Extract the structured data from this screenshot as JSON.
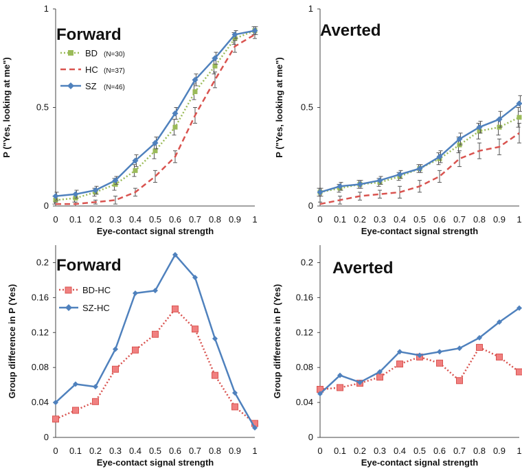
{
  "chart_data": [
    {
      "type": "line",
      "title": "Forward",
      "xlabel": "Eye-contact signal strength",
      "ylabel": "P (\"Yes, looking at me\")",
      "x": [
        0,
        0.1,
        0.2,
        0.3,
        0.4,
        0.5,
        0.6,
        0.7,
        0.8,
        0.9,
        1
      ],
      "xticks": [
        "0",
        "0.1",
        "0.2",
        "0.3",
        "0.4",
        "0.5",
        "0.6",
        "0.7",
        "0.8",
        "0.9",
        "1"
      ],
      "ylim": [
        0,
        1
      ],
      "yticks": [
        "0",
        "0.5",
        "1"
      ],
      "legend_position": "top-left",
      "series": [
        {
          "name": "BD",
          "n": "(N=30)",
          "color": "#9bbb59",
          "style": "dotted",
          "marker": "square",
          "values": [
            0.03,
            0.04,
            0.07,
            0.11,
            0.18,
            0.28,
            0.4,
            0.58,
            0.71,
            0.85,
            0.89
          ],
          "err": [
            0.02,
            0.02,
            0.02,
            0.03,
            0.03,
            0.04,
            0.04,
            0.04,
            0.04,
            0.03,
            0.02
          ]
        },
        {
          "name": "HC",
          "n": "(N=37)",
          "color": "#d9534f",
          "style": "dashed",
          "marker": "none",
          "values": [
            0.01,
            0.01,
            0.02,
            0.03,
            0.07,
            0.15,
            0.25,
            0.46,
            0.64,
            0.81,
            0.87
          ],
          "err": [
            0.01,
            0.01,
            0.01,
            0.02,
            0.02,
            0.03,
            0.03,
            0.04,
            0.04,
            0.03,
            0.02
          ]
        },
        {
          "name": "SZ",
          "n": "(N=46)",
          "color": "#4f81bd",
          "style": "solid",
          "marker": "diamond",
          "values": [
            0.05,
            0.06,
            0.08,
            0.13,
            0.23,
            0.32,
            0.47,
            0.64,
            0.75,
            0.87,
            0.89
          ],
          "err": [
            0.02,
            0.02,
            0.02,
            0.02,
            0.03,
            0.03,
            0.03,
            0.03,
            0.03,
            0.02,
            0.02
          ]
        }
      ]
    },
    {
      "type": "line",
      "title": "Averted",
      "xlabel": "Eye-contact signal strength",
      "ylabel": "P (\"Yes, looking at me\")",
      "x": [
        0,
        0.1,
        0.2,
        0.3,
        0.4,
        0.5,
        0.6,
        0.7,
        0.8,
        0.9,
        1
      ],
      "xticks": [
        "0",
        "0.1",
        "0.2",
        "0.3",
        "0.4",
        "0.5",
        "0.6",
        "0.7",
        "0.8",
        "0.9",
        "1"
      ],
      "ylim": [
        0,
        1
      ],
      "yticks": [
        "0",
        "0.5",
        "1"
      ],
      "series": [
        {
          "name": "BD",
          "color": "#9bbb59",
          "style": "dotted",
          "marker": "square",
          "values": [
            0.07,
            0.09,
            0.11,
            0.12,
            0.15,
            0.19,
            0.24,
            0.31,
            0.38,
            0.4,
            0.45
          ],
          "err": [
            0.02,
            0.02,
            0.02,
            0.02,
            0.02,
            0.02,
            0.03,
            0.04,
            0.04,
            0.04,
            0.05
          ]
        },
        {
          "name": "HC",
          "color": "#d9534f",
          "style": "dashed",
          "marker": "none",
          "values": [
            0.01,
            0.03,
            0.05,
            0.06,
            0.07,
            0.1,
            0.15,
            0.24,
            0.28,
            0.3,
            0.37
          ],
          "err": [
            0.01,
            0.02,
            0.02,
            0.02,
            0.03,
            0.03,
            0.03,
            0.04,
            0.04,
            0.04,
            0.05
          ]
        },
        {
          "name": "SZ",
          "color": "#4f81bd",
          "style": "solid",
          "marker": "diamond",
          "values": [
            0.07,
            0.1,
            0.11,
            0.13,
            0.16,
            0.19,
            0.25,
            0.34,
            0.4,
            0.44,
            0.52
          ],
          "err": [
            0.02,
            0.02,
            0.02,
            0.02,
            0.02,
            0.02,
            0.03,
            0.03,
            0.03,
            0.04,
            0.04
          ]
        }
      ]
    },
    {
      "type": "line",
      "title": "Forward",
      "xlabel": "Eye-contact signal strength",
      "ylabel": "Group difference in P (Yes)",
      "x": [
        0,
        0.1,
        0.2,
        0.3,
        0.4,
        0.5,
        0.6,
        0.7,
        0.8,
        0.9,
        1
      ],
      "xticks": [
        "0",
        "0.1",
        "0.2",
        "0.3",
        "0.4",
        "0.5",
        "0.6",
        "0.7",
        "0.8",
        "0.9",
        "1"
      ],
      "ylim": [
        0,
        0.22
      ],
      "yticks": [
        "0",
        "0.04",
        "0.08",
        "0.12",
        "0.16",
        "0.2"
      ],
      "legend_position": "top-left",
      "series": [
        {
          "name": "BD-HC",
          "color": "#d9534f",
          "style": "dotted",
          "marker": "square",
          "values": [
            0.021,
            0.031,
            0.041,
            0.078,
            0.1,
            0.118,
            0.147,
            0.124,
            0.071,
            0.035,
            0.016
          ]
        },
        {
          "name": "SZ-HC",
          "color": "#4f81bd",
          "style": "solid",
          "marker": "diamond",
          "values": [
            0.04,
            0.061,
            0.058,
            0.101,
            0.165,
            0.168,
            0.209,
            0.183,
            0.113,
            0.051,
            0.011
          ]
        }
      ]
    },
    {
      "type": "line",
      "title": "Averted",
      "xlabel": "Eye-contact signal strength",
      "ylabel": "Group difference in P (Yes)",
      "x": [
        0,
        0.1,
        0.2,
        0.3,
        0.4,
        0.5,
        0.6,
        0.7,
        0.8,
        0.9,
        1
      ],
      "xticks": [
        "0",
        "0.1",
        "0.2",
        "0.3",
        "0.4",
        "0.5",
        "0.6",
        "0.7",
        "0.8",
        "0.9",
        "1"
      ],
      "ylim": [
        0,
        0.22
      ],
      "yticks": [
        "0",
        "0.04",
        "0.08",
        "0.12",
        "0.16",
        "0.2"
      ],
      "series": [
        {
          "name": "BD-HC",
          "color": "#d9534f",
          "style": "dotted",
          "marker": "square",
          "values": [
            0.055,
            0.057,
            0.062,
            0.069,
            0.084,
            0.092,
            0.085,
            0.065,
            0.103,
            0.092,
            0.075
          ]
        },
        {
          "name": "SZ-HC",
          "color": "#4f81bd",
          "style": "solid",
          "marker": "diamond",
          "values": [
            0.05,
            0.071,
            0.063,
            0.075,
            0.098,
            0.094,
            0.098,
            0.102,
            0.114,
            0.132,
            0.148
          ]
        }
      ]
    }
  ]
}
